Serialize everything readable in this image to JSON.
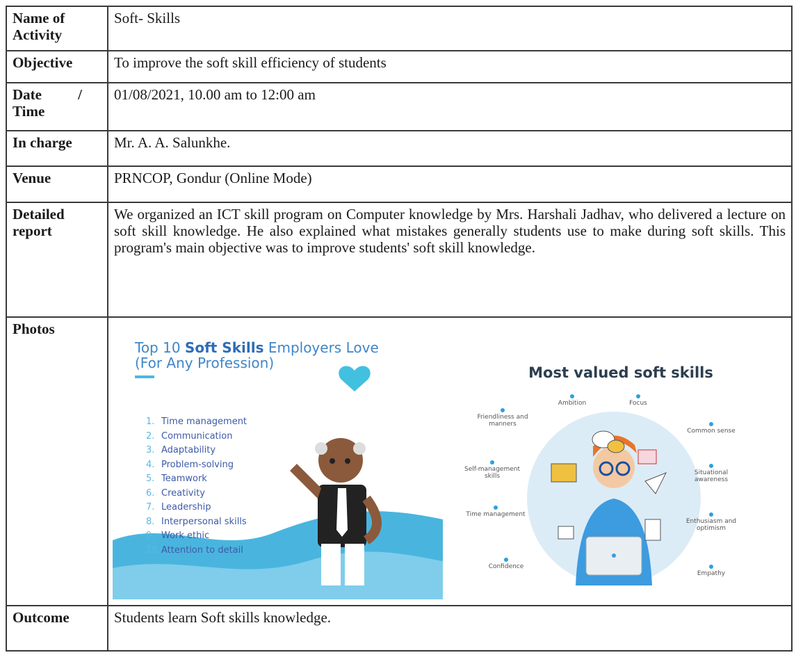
{
  "table": {
    "rows": [
      {
        "label": "Name of Activity",
        "value": "Soft- Skills"
      },
      {
        "label": "Objective",
        "value": "To improve the soft skill efficiency of students"
      },
      {
        "label": "Date / Time",
        "value": "01/08/2021, 10.00 am to 12:00 am"
      },
      {
        "label": "In charge",
        "value": "Mr. A. A. Salunkhe."
      },
      {
        "label": "Venue",
        "value": "PRNCOP, Gondur (Online Mode)"
      },
      {
        "label": "Detailed report",
        "value": "We organized an ICT skill program on Computer knowledge by Mrs. Harshali Jadhav, who delivered a lecture on soft skill knowledge. He also explained what mistakes generally students use to make during soft skills. This program's main objective was to improve students' soft skill knowledge."
      },
      {
        "label": "Photos"
      },
      {
        "label": "Outcome",
        "value": "Students learn Soft skills knowledge."
      }
    ]
  },
  "photos": {
    "left": {
      "title_start": "Top 10",
      "title_bold": "Soft Skills",
      "title_end": "Employers Love",
      "subtitle": "(For Any Profession)",
      "items": [
        {
          "num": "1.",
          "text": "Time management"
        },
        {
          "num": "2.",
          "text": "Communication"
        },
        {
          "num": "3.",
          "text": "Adaptability"
        },
        {
          "num": "4.",
          "text": "Problem-solving"
        },
        {
          "num": "5.",
          "text": "Teamwork"
        },
        {
          "num": "6.",
          "text": "Creativity"
        },
        {
          "num": "7.",
          "text": "Leadership"
        },
        {
          "num": "8.",
          "text": "Interpersonal skills"
        },
        {
          "num": "9.",
          "text": "Work ethic"
        },
        {
          "num": "10.",
          "text": "Attention to detail"
        }
      ]
    },
    "right": {
      "title": "Most valued soft skills",
      "labels": [
        "Ambition",
        "Focus",
        "Friendliness and manners",
        "Common sense",
        "Self-management skills",
        "Situational awareness",
        "Time management",
        "Enthusiasm and optimism",
        "Confidence",
        "Empathy"
      ]
    }
  }
}
